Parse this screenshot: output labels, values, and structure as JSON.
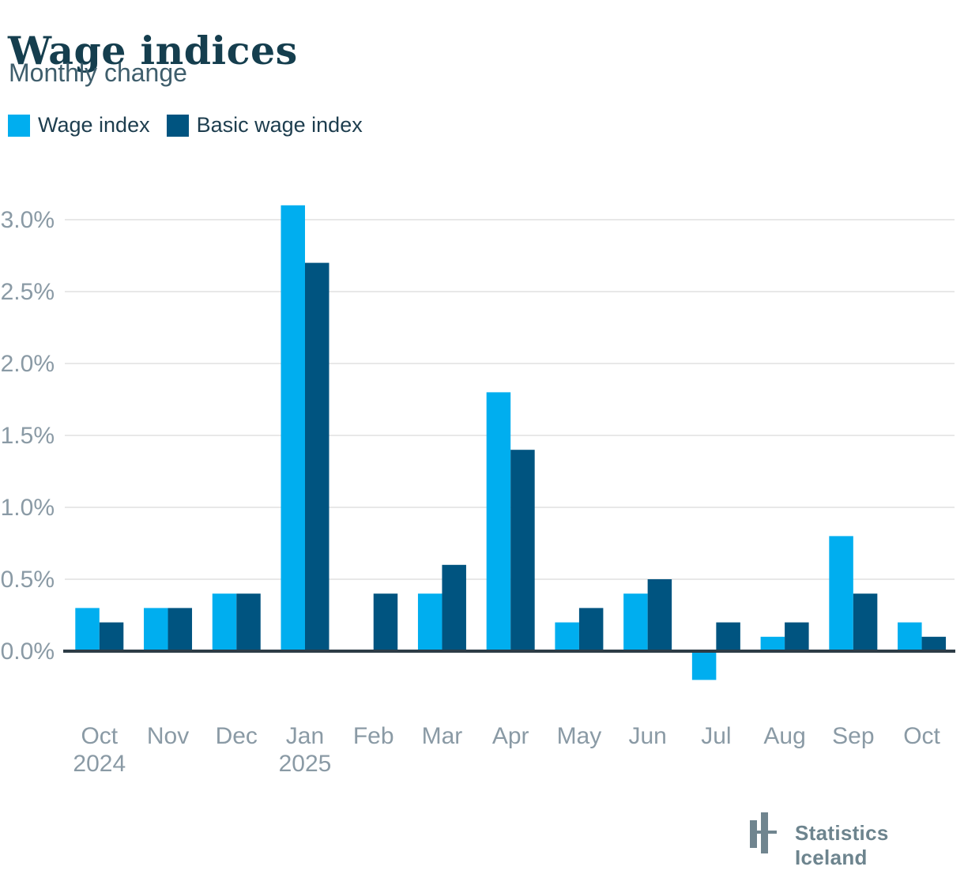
{
  "header": {
    "title": "Wage indices",
    "subtitle": "Monthly change"
  },
  "chart_data": {
    "type": "bar",
    "title": "Wage indices",
    "subtitle": "Monthly change",
    "categories": [
      "Oct",
      "Nov",
      "Dec",
      "Jan",
      "Feb",
      "Mar",
      "Apr",
      "May",
      "Jun",
      "Jul",
      "Aug",
      "Sep",
      "Oct"
    ],
    "category_sublabels": [
      "2024",
      "",
      "",
      "2025",
      "",
      "",
      "",
      "",
      "",
      "",
      "",
      "",
      ""
    ],
    "series": [
      {
        "name": "Wage index",
        "color": "#00aeef",
        "values": [
          0.3,
          0.3,
          0.4,
          3.1,
          0.0,
          0.4,
          1.8,
          0.2,
          0.4,
          -0.2,
          0.1,
          0.8,
          0.2
        ]
      },
      {
        "name": "Basic wage index",
        "color": "#005480",
        "values": [
          0.2,
          0.3,
          0.4,
          2.7,
          0.4,
          0.6,
          1.4,
          0.3,
          0.5,
          0.2,
          0.2,
          0.4,
          0.1
        ]
      }
    ],
    "yticks": [
      0,
      0.5,
      1,
      1.5,
      2,
      2.5,
      3
    ],
    "ytick_labels": [
      "0.0%",
      "0.5%",
      "1.0%",
      "1.5%",
      "2.0%",
      "2.5%",
      "3.0%"
    ],
    "ylim": [
      -0.3,
      3.3
    ],
    "unit": "%",
    "grid": true,
    "legend_position": "top-left"
  },
  "footer": {
    "brand": "Statistics Iceland"
  },
  "colors": {
    "title": "#153e4e",
    "subtitle": "#3f5e6c",
    "legend_text": "#1d3d4e",
    "axis_labels": "#8a9aa5",
    "gridline": "#e8e8e8",
    "axis_line": "#2d3c46",
    "background": "#ffffff",
    "brand": "#6d848e"
  }
}
